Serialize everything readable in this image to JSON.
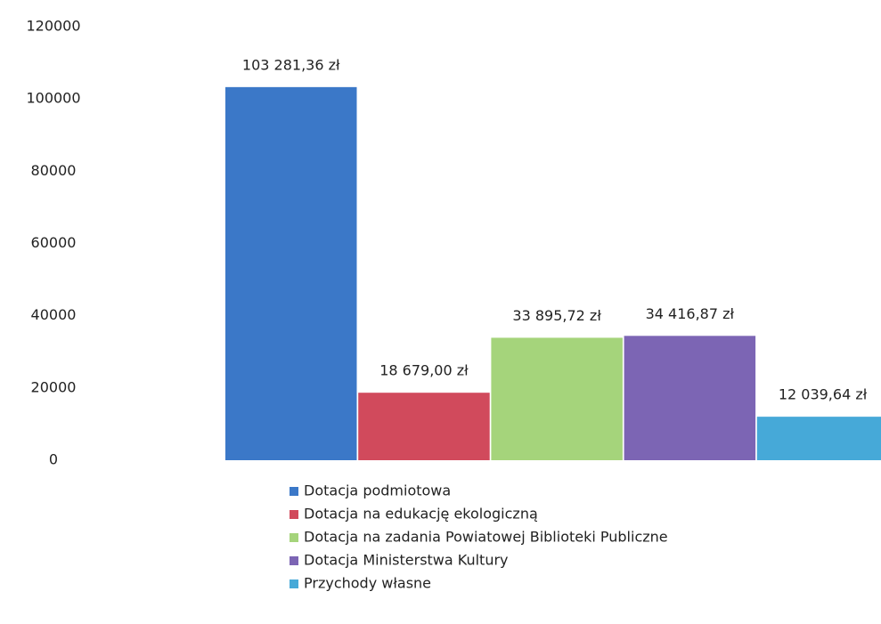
{
  "chart_data": {
    "type": "bar",
    "series": [
      {
        "name": "Dotacja podmiotowa",
        "color": "#3b78c8",
        "values": [
          103281.36
        ],
        "value_labels": [
          "103 281,36 zł"
        ]
      },
      {
        "name": "Dotacja na edukację ekologiczną",
        "color": "#d14a5c",
        "values": [
          18679.0
        ],
        "value_labels": [
          "18 679,00 zł"
        ]
      },
      {
        "name": "Dotacja na zadania Powiatowej Biblioteki Publiczne",
        "color": "#a5d47b",
        "values": [
          33895.72
        ],
        "value_labels": [
          "33 895,72 zł"
        ]
      },
      {
        "name": "Dotacja Ministerstwa Kultury",
        "color": "#7c65b4",
        "values": [
          34416.87
        ],
        "value_labels": [
          "34 416,87 zł"
        ]
      },
      {
        "name": "Przychody własne",
        "color": "#46a9d8",
        "values": [
          12039.64
        ],
        "value_labels": [
          "12 039,64 zł"
        ]
      }
    ],
    "ylim": [
      0,
      120000
    ],
    "yticks": [
      0,
      20000,
      40000,
      60000,
      80000,
      100000,
      120000
    ],
    "grid": false,
    "legend": "bottom"
  }
}
